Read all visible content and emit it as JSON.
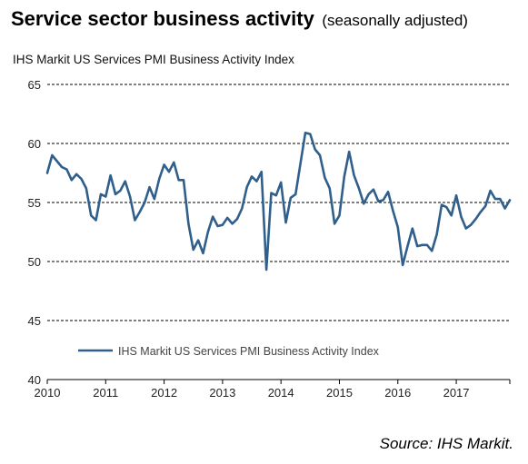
{
  "header": {
    "title": "Service sector business activity",
    "title_note": "(seasonally adjusted)",
    "subtitle": "IHS Markit US Services PMI Business Activity Index"
  },
  "source": "Source: IHS Markit.",
  "chart_data": {
    "type": "line",
    "title": "Service sector business activity",
    "subtitle": "IHS Markit US Services PMI Business Activity Index",
    "ylim": [
      40,
      65
    ],
    "y_ticks": [
      40,
      45,
      50,
      55,
      60,
      65
    ],
    "xlim": [
      "2010-01",
      "2017-12"
    ],
    "x_ticks": [
      "2010",
      "2011",
      "2012",
      "2013",
      "2014",
      "2015",
      "2016",
      "2017"
    ],
    "grid": "horizontal dashed",
    "legend": "bottom-left",
    "series_color": "#2f5f8a",
    "series": [
      {
        "name": "IHS Markit US Services PMI Business Activity Index",
        "x": [
          "2010-01",
          "2010-02",
          "2010-03",
          "2010-04",
          "2010-05",
          "2010-06",
          "2010-07",
          "2010-08",
          "2010-09",
          "2010-10",
          "2010-11",
          "2010-12",
          "2011-01",
          "2011-02",
          "2011-03",
          "2011-04",
          "2011-05",
          "2011-06",
          "2011-07",
          "2011-08",
          "2011-09",
          "2011-10",
          "2011-11",
          "2011-12",
          "2012-01",
          "2012-02",
          "2012-03",
          "2012-04",
          "2012-05",
          "2012-06",
          "2012-07",
          "2012-08",
          "2012-09",
          "2012-10",
          "2012-11",
          "2012-12",
          "2013-01",
          "2013-02",
          "2013-03",
          "2013-04",
          "2013-05",
          "2013-06",
          "2013-07",
          "2013-08",
          "2013-09",
          "2013-10",
          "2013-11",
          "2013-12",
          "2014-01",
          "2014-02",
          "2014-03",
          "2014-04",
          "2014-05",
          "2014-06",
          "2014-07",
          "2014-08",
          "2014-09",
          "2014-10",
          "2014-11",
          "2014-12",
          "2015-01",
          "2015-02",
          "2015-03",
          "2015-04",
          "2015-05",
          "2015-06",
          "2015-07",
          "2015-08",
          "2015-09",
          "2015-10",
          "2015-11",
          "2015-12",
          "2016-01",
          "2016-02",
          "2016-03",
          "2016-04",
          "2016-05",
          "2016-06",
          "2016-07",
          "2016-08",
          "2016-09",
          "2016-10",
          "2016-11",
          "2016-12",
          "2017-01",
          "2017-02",
          "2017-03",
          "2017-04",
          "2017-05",
          "2017-06",
          "2017-07",
          "2017-08",
          "2017-09",
          "2017-10",
          "2017-11",
          "2017-12"
        ],
        "values": [
          57.5,
          59.0,
          58.5,
          58.0,
          57.8,
          56.9,
          57.4,
          57.0,
          56.2,
          53.9,
          53.5,
          55.7,
          55.5,
          57.3,
          55.7,
          56.0,
          56.8,
          55.5,
          53.5,
          54.2,
          55.0,
          56.3,
          55.3,
          57.0,
          58.2,
          57.6,
          58.4,
          56.9,
          56.9,
          53.2,
          51.0,
          51.8,
          50.7,
          52.5,
          53.8,
          53.0,
          53.1,
          53.7,
          53.2,
          53.6,
          54.5,
          56.3,
          57.2,
          56.8,
          57.6,
          49.3,
          55.8,
          55.6,
          56.7,
          53.3,
          55.4,
          55.7,
          58.3,
          60.9,
          60.8,
          59.5,
          59.0,
          57.1,
          56.2,
          53.2,
          53.9,
          57.2,
          59.3,
          57.3,
          56.2,
          54.9,
          55.7,
          56.1,
          55.1,
          55.2,
          55.9,
          54.3,
          52.9,
          49.7,
          51.3,
          52.8,
          51.3,
          51.4,
          51.4,
          50.9,
          52.3,
          54.8,
          54.6,
          53.9,
          55.6,
          53.8,
          52.8,
          53.1,
          53.6,
          54.2,
          54.7,
          56.0,
          55.3,
          55.3,
          54.5,
          55.2
        ]
      }
    ]
  }
}
